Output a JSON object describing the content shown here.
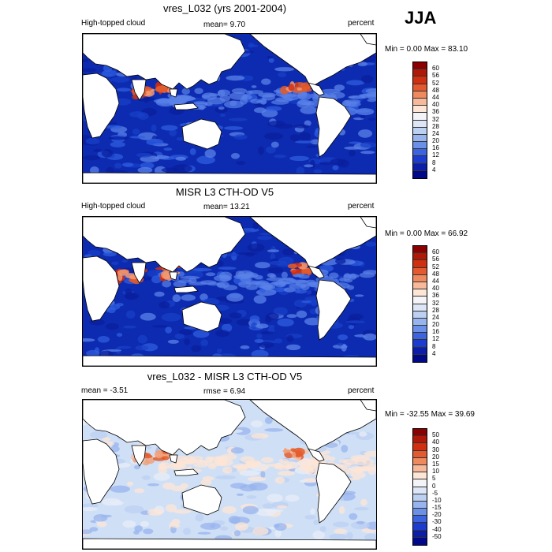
{
  "season": "JJA",
  "panels": [
    {
      "title": "vres_L032 (yrs 2001-2004)",
      "left_label": "High-topped cloud",
      "mean_label": "mean=   9.70",
      "right_label": "percent",
      "minmax_label": "Min =   0.00 Max =  83.10",
      "colorbar": {
        "levels": [
          "60",
          "56",
          "52",
          "48",
          "44",
          "40",
          "36",
          "32",
          "28",
          "24",
          "20",
          "16",
          "12",
          "8",
          "4"
        ],
        "colors": [
          "#8b0000",
          "#b01808",
          "#d03010",
          "#e45a30",
          "#ef8a5e",
          "#f7b99a",
          "#fde6d6",
          "#f4f4f8",
          "#dce6f6",
          "#bcd0f2",
          "#98b4ee",
          "#6a90e8",
          "#3c64e0",
          "#1c3cd0",
          "#0c1ea8",
          "#000a88"
        ]
      },
      "map": {
        "bg": "#0d2bb0",
        "ocean_colors": [
          "#0a1f9e",
          "#1840c8",
          "#2e5ee0",
          "#5a82e8"
        ],
        "hot": [
          "#e35a2c",
          "#d03010",
          "#f39870"
        ]
      }
    },
    {
      "title": "MISR L3 CTH-OD V5",
      "left_label": "High-topped cloud",
      "mean_label": "mean=  13.21",
      "right_label": "percent",
      "minmax_label": "Min =   0.00 Max =  66.92",
      "colorbar": {
        "levels": [
          "60",
          "56",
          "52",
          "48",
          "44",
          "40",
          "36",
          "32",
          "28",
          "24",
          "20",
          "16",
          "12",
          "8",
          "4"
        ],
        "colors": [
          "#8b0000",
          "#b01808",
          "#d03010",
          "#e45a30",
          "#ef8a5e",
          "#f7b99a",
          "#fde6d6",
          "#f4f4f8",
          "#dce6f6",
          "#bcd0f2",
          "#98b4ee",
          "#6a90e8",
          "#3c64e0",
          "#1c3cd0",
          "#0c1ea8",
          "#000a88"
        ]
      },
      "map": {
        "bg": "#0d2bb0",
        "ocean_colors": [
          "#0a1f9e",
          "#1840c8",
          "#2e5ee0",
          "#5a82e8"
        ],
        "hot": [
          "#e35a2c",
          "#d03010",
          "#f39870"
        ]
      }
    },
    {
      "title": "vres_L032 - MISR L3 CTH-OD V5",
      "left_label": "mean =  -3.51",
      "mean_label": "rmse =   6.94",
      "right_label": "percent",
      "minmax_label": "Min = -32.55 Max =  39.69",
      "colorbar": {
        "levels": [
          "50",
          "40",
          "30",
          "20",
          "15",
          "10",
          "5",
          "0",
          "-5",
          "-10",
          "-15",
          "-20",
          "-30",
          "-40",
          "-50"
        ],
        "colors": [
          "#8b0000",
          "#b01808",
          "#d03010",
          "#e45a30",
          "#ef8a5e",
          "#f7b99a",
          "#fde6d6",
          "#f4f4f8",
          "#dce6f6",
          "#bcd0f2",
          "#98b4ee",
          "#6a90e8",
          "#3c64e0",
          "#1c3cd0",
          "#0c1ea8",
          "#000a88"
        ]
      },
      "map": {
        "bg": "#cfe0f6",
        "ocean_colors": [
          "#e8eef8",
          "#bcd0f2",
          "#98b4ee",
          "#fde6d6"
        ],
        "hot": [
          "#f0a07a",
          "#e35a2c",
          "#f7c6a8"
        ]
      }
    }
  ]
}
